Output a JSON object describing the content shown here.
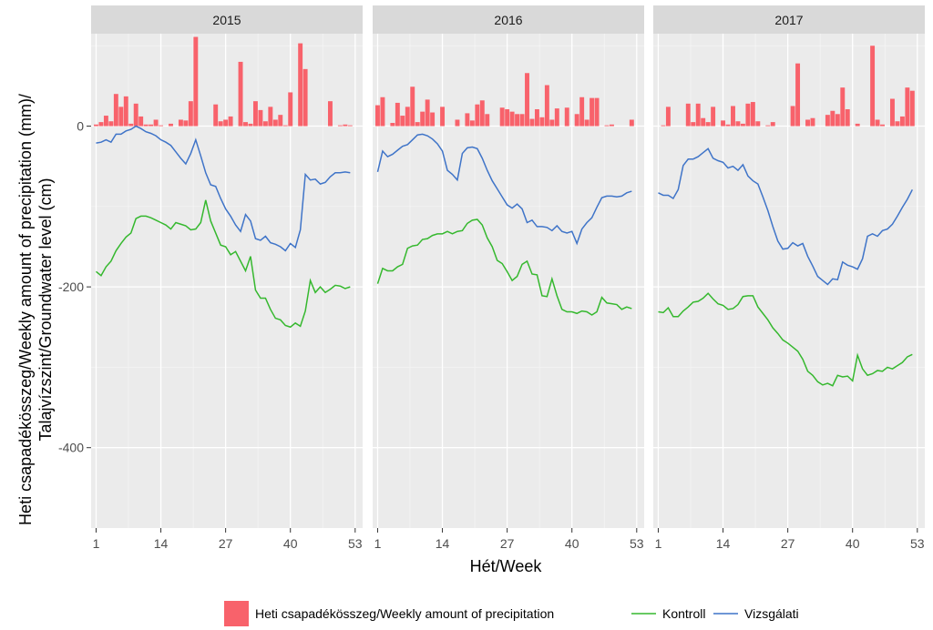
{
  "chart_data": {
    "type": "bar+line",
    "facet_labels": [
      "2015",
      "2016",
      "2017"
    ],
    "xlabel": "Hét/Week",
    "ylabel_line1": "Heti csapadékösszeg/Weekly amount of precipitation (mm)/",
    "ylabel_line2": "Talajvízszint/Groundwater level (cm)",
    "x_ticks": [
      1,
      14,
      27,
      40,
      53
    ],
    "y_ticks": [
      0,
      -200,
      -400
    ],
    "y_tick_labels": [
      "0",
      "-200",
      "-400"
    ],
    "ylim": [
      -500,
      115
    ],
    "xlim": [
      0,
      54.5
    ],
    "grid": true,
    "legend_placement": "bottom",
    "legend": {
      "bar_label": "Heti csapadékösszeg/Weekly amount of precipitation",
      "line_labels": [
        "Kontroll",
        "Vizsgálati"
      ]
    },
    "colors": {
      "precipitation": "#F8626B",
      "kontroll": "#35B82E",
      "vizsgalati": "#3F74C8",
      "panel_bg": "#EBEBEB",
      "strip_bg": "#D9D9D9"
    },
    "facets": [
      {
        "year": "2015",
        "precip": [
          2,
          5,
          13,
          6,
          40,
          24,
          37,
          3,
          28,
          12,
          2,
          2,
          8,
          1,
          0,
          3,
          0,
          8,
          7,
          31,
          111,
          0,
          0,
          0,
          27,
          6,
          8,
          12,
          0,
          80,
          5,
          3,
          31,
          20,
          6,
          24,
          8,
          14,
          1,
          42,
          0,
          103,
          71,
          0,
          0,
          0,
          0,
          31,
          0,
          1,
          2,
          1
        ],
        "kontroll": [
          -181,
          -186,
          -175,
          -168,
          -155,
          -146,
          -138,
          -133,
          -115,
          -112,
          -112,
          -114,
          -117,
          -120,
          -123,
          -128,
          -120,
          -122,
          -124,
          -129,
          -128,
          -120,
          -92,
          -118,
          -133,
          -148,
          -150,
          -160,
          -156,
          -168,
          -180,
          -162,
          -204,
          -214,
          -214,
          -228,
          -239,
          -241,
          -248,
          -250,
          -245,
          -249,
          -230,
          -192,
          -207,
          -200,
          -207,
          -203,
          -198,
          -199,
          -202,
          -200
        ],
        "vizsgalati": [
          -21,
          -20,
          -17,
          -20,
          -10,
          -10,
          -6,
          -4,
          0,
          -3,
          -7,
          -9,
          -12,
          -17,
          -20,
          -24,
          -32,
          -40,
          -47,
          -34,
          -17,
          -37,
          -58,
          -73,
          -75,
          -90,
          -103,
          -112,
          -123,
          -131,
          -110,
          -118,
          -140,
          -142,
          -137,
          -145,
          -147,
          -150,
          -155,
          -146,
          -151,
          -129,
          -60,
          -67,
          -66,
          -72,
          -70,
          -63,
          -58,
          -58,
          -57,
          -58
        ]
      },
      {
        "year": "2016",
        "precip": [
          26,
          36,
          0,
          4,
          29,
          13,
          24,
          49,
          5,
          18,
          33,
          17,
          0,
          24,
          0,
          0,
          8,
          0,
          16,
          7,
          27,
          32,
          15,
          0,
          0,
          23,
          21,
          18,
          15,
          15,
          66,
          9,
          21,
          11,
          51,
          8,
          22,
          0,
          23,
          0,
          15,
          36,
          8,
          35,
          35,
          0,
          1,
          2,
          0,
          0,
          0,
          8
        ],
        "kontroll": [
          -196,
          -177,
          -180,
          -180,
          -175,
          -172,
          -152,
          -149,
          -148,
          -141,
          -140,
          -136,
          -134,
          -134,
          -131,
          -134,
          -131,
          -130,
          -121,
          -117,
          -116,
          -123,
          -139,
          -150,
          -167,
          -171,
          -181,
          -192,
          -187,
          -172,
          -168,
          -184,
          -185,
          -211,
          -212,
          -190,
          -211,
          -228,
          -231,
          -231,
          -233,
          -230,
          -231,
          -235,
          -231,
          -213,
          -220,
          -221,
          -222,
          -228,
          -225,
          -227
        ],
        "vizsgalati": [
          -57,
          -31,
          -38,
          -35,
          -30,
          -25,
          -23,
          -17,
          -11,
          -10,
          -12,
          -16,
          -22,
          -31,
          -55,
          -60,
          -67,
          -34,
          -27,
          -26,
          -28,
          -40,
          -55,
          -68,
          -78,
          -88,
          -98,
          -102,
          -97,
          -103,
          -120,
          -117,
          -125,
          -125,
          -126,
          -130,
          -124,
          -131,
          -133,
          -131,
          -146,
          -128,
          -120,
          -114,
          -101,
          -89,
          -87,
          -87,
          -88,
          -87,
          -83,
          -81
        ]
      },
      {
        "year": "2017",
        "precip": [
          0,
          1,
          24,
          0,
          0,
          0,
          28,
          5,
          28,
          10,
          5,
          24,
          0,
          7,
          2,
          25,
          6,
          3,
          28,
          30,
          6,
          0,
          1,
          5,
          0,
          0,
          0,
          25,
          78,
          0,
          8,
          10,
          0,
          0,
          14,
          19,
          15,
          48,
          21,
          0,
          3,
          0,
          0,
          100,
          8,
          2,
          0,
          34,
          6,
          12,
          48,
          44
        ],
        "kontroll": [
          -231,
          -232,
          -226,
          -237,
          -237,
          -230,
          -225,
          -219,
          -218,
          -214,
          -208,
          -215,
          -221,
          -223,
          -228,
          -227,
          -222,
          -212,
          -211,
          -211,
          -225,
          -233,
          -241,
          -251,
          -258,
          -266,
          -270,
          -275,
          -280,
          -290,
          -305,
          -310,
          -318,
          -322,
          -320,
          -323,
          -310,
          -312,
          -311,
          -317,
          -285,
          -302,
          -310,
          -308,
          -304,
          -305,
          -300,
          -302,
          -298,
          -294,
          -287,
          -284
        ],
        "vizsgalati": [
          -83,
          -86,
          -86,
          -90,
          -79,
          -49,
          -41,
          -41,
          -38,
          -33,
          -28,
          -40,
          -43,
          -45,
          -52,
          -50,
          -55,
          -48,
          -62,
          -68,
          -72,
          -88,
          -105,
          -125,
          -143,
          -153,
          -152,
          -145,
          -149,
          -146,
          -162,
          -174,
          -187,
          -192,
          -197,
          -190,
          -191,
          -169,
          -173,
          -175,
          -178,
          -165,
          -137,
          -134,
          -137,
          -130,
          -128,
          -122,
          -112,
          -101,
          -91,
          -79
        ]
      }
    ]
  }
}
